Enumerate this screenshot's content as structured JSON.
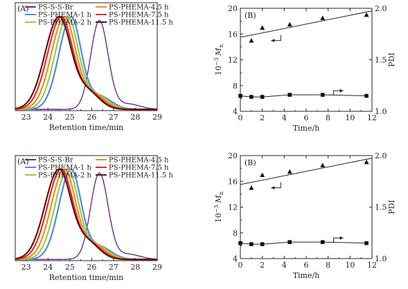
{
  "chart_data": [
    {
      "type": "line",
      "panel_label": "(A)",
      "xlabel": "Retention time/min",
      "xlim": [
        22.5,
        29
      ],
      "xticks": [
        23,
        24,
        25,
        26,
        27,
        28,
        29
      ],
      "ylim": [
        0,
        1
      ],
      "legend_placement": "top",
      "series": [
        {
          "name": "PS-S-S-Br",
          "color": "#6a2c8a",
          "peak": 26.35,
          "width_left": 0.4,
          "width_right": 0.4,
          "height": 0.82,
          "tail": 0.05
        },
        {
          "name": "PS-PHEMA-1 h",
          "color": "#4a8fd4",
          "peak": 25.05,
          "width_left": 0.55,
          "width_right": 0.46,
          "height": 0.85,
          "tail": 0.12
        },
        {
          "name": "PS-PHEMA-2 h",
          "color": "#a3c93a",
          "peak": 24.9,
          "width_left": 0.58,
          "width_right": 0.48,
          "height": 0.85,
          "tail": 0.13
        },
        {
          "name": "PS-PHEMA-4.5 h",
          "color": "#f08a2c",
          "peak": 24.75,
          "width_left": 0.6,
          "width_right": 0.5,
          "height": 0.85,
          "tail": 0.14
        },
        {
          "name": "PS-PHEMA-7.5 h",
          "color": "#d8312a",
          "peak": 24.6,
          "width_left": 0.62,
          "width_right": 0.52,
          "height": 0.85,
          "tail": 0.15
        },
        {
          "name": "PS-PHEMA-11.5 h",
          "color": "#5a1414",
          "peak": 24.5,
          "width_left": 0.64,
          "width_right": 0.54,
          "height": 0.85,
          "tail": 0.16
        }
      ]
    },
    {
      "type": "scatter",
      "panel_label": "(B)",
      "xlabel": "Time/h",
      "ylabel_left_main": "10",
      "ylabel_left_exp": "−3",
      "ylabel_left_sym": "M",
      "ylabel_left_sub": "n",
      "ylabel_right": "PDI",
      "xlim": [
        0,
        12
      ],
      "xticks": [
        0,
        2,
        4,
        6,
        8,
        10,
        12
      ],
      "ylim_left": [
        4,
        20
      ],
      "yticks_left": [
        4,
        8,
        12,
        16,
        20
      ],
      "ylim_right": [
        1.0,
        2.0
      ],
      "yticks_right": [
        "1.0",
        "1.5",
        "2.0"
      ],
      "mn": {
        "x": [
          1,
          2,
          4.5,
          7.5,
          11.5
        ],
        "y": [
          15.0,
          17.0,
          17.5,
          18.5,
          19.0
        ]
      },
      "mn_fit": {
        "x": [
          0,
          12
        ],
        "y": [
          15.5,
          19.6
        ]
      },
      "pdi": {
        "x": [
          0,
          1,
          2,
          4.5,
          7.5,
          11.5
        ],
        "y": [
          1.15,
          1.14,
          1.14,
          1.16,
          1.16,
          1.15
        ]
      }
    },
    {
      "type": "line",
      "panel_label": "(A)",
      "xlabel": "Retention time/min",
      "xlim": [
        22.5,
        29
      ],
      "xticks": [
        23,
        24,
        25,
        26,
        27,
        28,
        29
      ],
      "ylim": [
        0,
        1
      ],
      "legend_placement": "top",
      "series": [
        {
          "name": "PS-S-S-Br",
          "color": "#6a2c8a",
          "peak": 26.35,
          "width_left": 0.4,
          "width_right": 0.4,
          "height": 0.82,
          "tail": 0.05
        },
        {
          "name": "PS-PHEMA-1 h",
          "color": "#4a8fd4",
          "peak": 25.05,
          "width_left": 0.55,
          "width_right": 0.46,
          "height": 0.85,
          "tail": 0.12
        },
        {
          "name": "PS-PHEMA-2 h",
          "color": "#a3c93a",
          "peak": 24.9,
          "width_left": 0.58,
          "width_right": 0.48,
          "height": 0.85,
          "tail": 0.13
        },
        {
          "name": "PS-PHEMA-4.5 h",
          "color": "#f08a2c",
          "peak": 24.75,
          "width_left": 0.6,
          "width_right": 0.5,
          "height": 0.85,
          "tail": 0.14
        },
        {
          "name": "PS-PHEMA-7.5 h",
          "color": "#d8312a",
          "peak": 24.6,
          "width_left": 0.62,
          "width_right": 0.52,
          "height": 0.85,
          "tail": 0.15
        },
        {
          "name": "PS-PHEMA-11.5 h",
          "color": "#5a1414",
          "peak": 24.5,
          "width_left": 0.64,
          "width_right": 0.54,
          "height": 0.85,
          "tail": 0.16
        }
      ]
    },
    {
      "type": "scatter",
      "panel_label": "(B)",
      "xlabel": "Time/h",
      "ylabel_left_main": "10",
      "ylabel_left_exp": "−3",
      "ylabel_left_sym": "M",
      "ylabel_left_sub": "n",
      "ylabel_right": "PDI",
      "xlim": [
        0,
        12
      ],
      "xticks": [
        0,
        2,
        4,
        6,
        8,
        10,
        12
      ],
      "ylim_left": [
        4,
        20
      ],
      "yticks_left": [
        4,
        8,
        12,
        16,
        20
      ],
      "ylim_right": [
        1.0,
        2.0
      ],
      "yticks_right": [
        "1.0",
        "1.5",
        "2.0"
      ],
      "mn": {
        "x": [
          1,
          2,
          4.5,
          7.5,
          11.5
        ],
        "y": [
          15.0,
          17.0,
          17.5,
          18.5,
          19.0
        ]
      },
      "mn_fit": {
        "x": [
          0,
          12
        ],
        "y": [
          15.5,
          19.6
        ]
      },
      "pdi": {
        "x": [
          0,
          1,
          2,
          4.5,
          7.5,
          11.5
        ],
        "y": [
          1.15,
          1.14,
          1.14,
          1.16,
          1.16,
          1.15
        ]
      }
    }
  ]
}
